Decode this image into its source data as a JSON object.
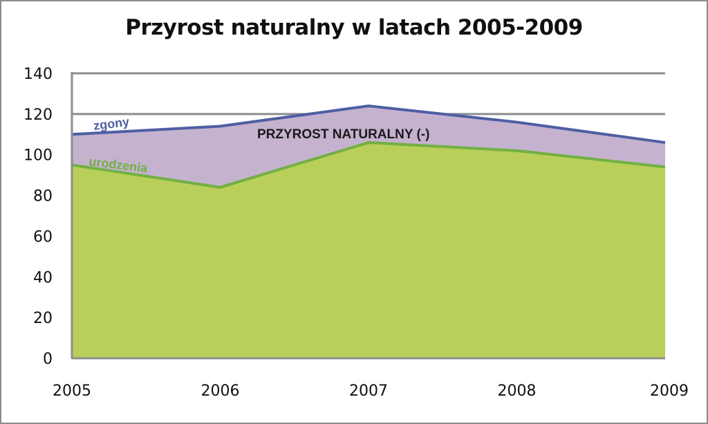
{
  "chart_data": {
    "type": "area",
    "title": "Przyrost naturalny w latach 2005-2009",
    "x": [
      "2005",
      "2006",
      "2007",
      "2008",
      "2009"
    ],
    "ylim": [
      0,
      140
    ],
    "yticks": [
      0,
      20,
      40,
      60,
      80,
      100,
      120,
      140
    ],
    "grid": true,
    "series": [
      {
        "name": "zgony",
        "values": [
          110,
          114,
          124,
          116,
          106
        ],
        "color": "#4f5ea3"
      },
      {
        "name": "urodzenia",
        "values": [
          95,
          84,
          106,
          102,
          94
        ],
        "color": "#72b043"
      }
    ],
    "fills": {
      "urodzenia_area": "#b8cf5a",
      "gap_area": "#c5b2cf"
    },
    "annotations": {
      "gap_label": "PRZYROST NATURALNY (-)"
    }
  }
}
